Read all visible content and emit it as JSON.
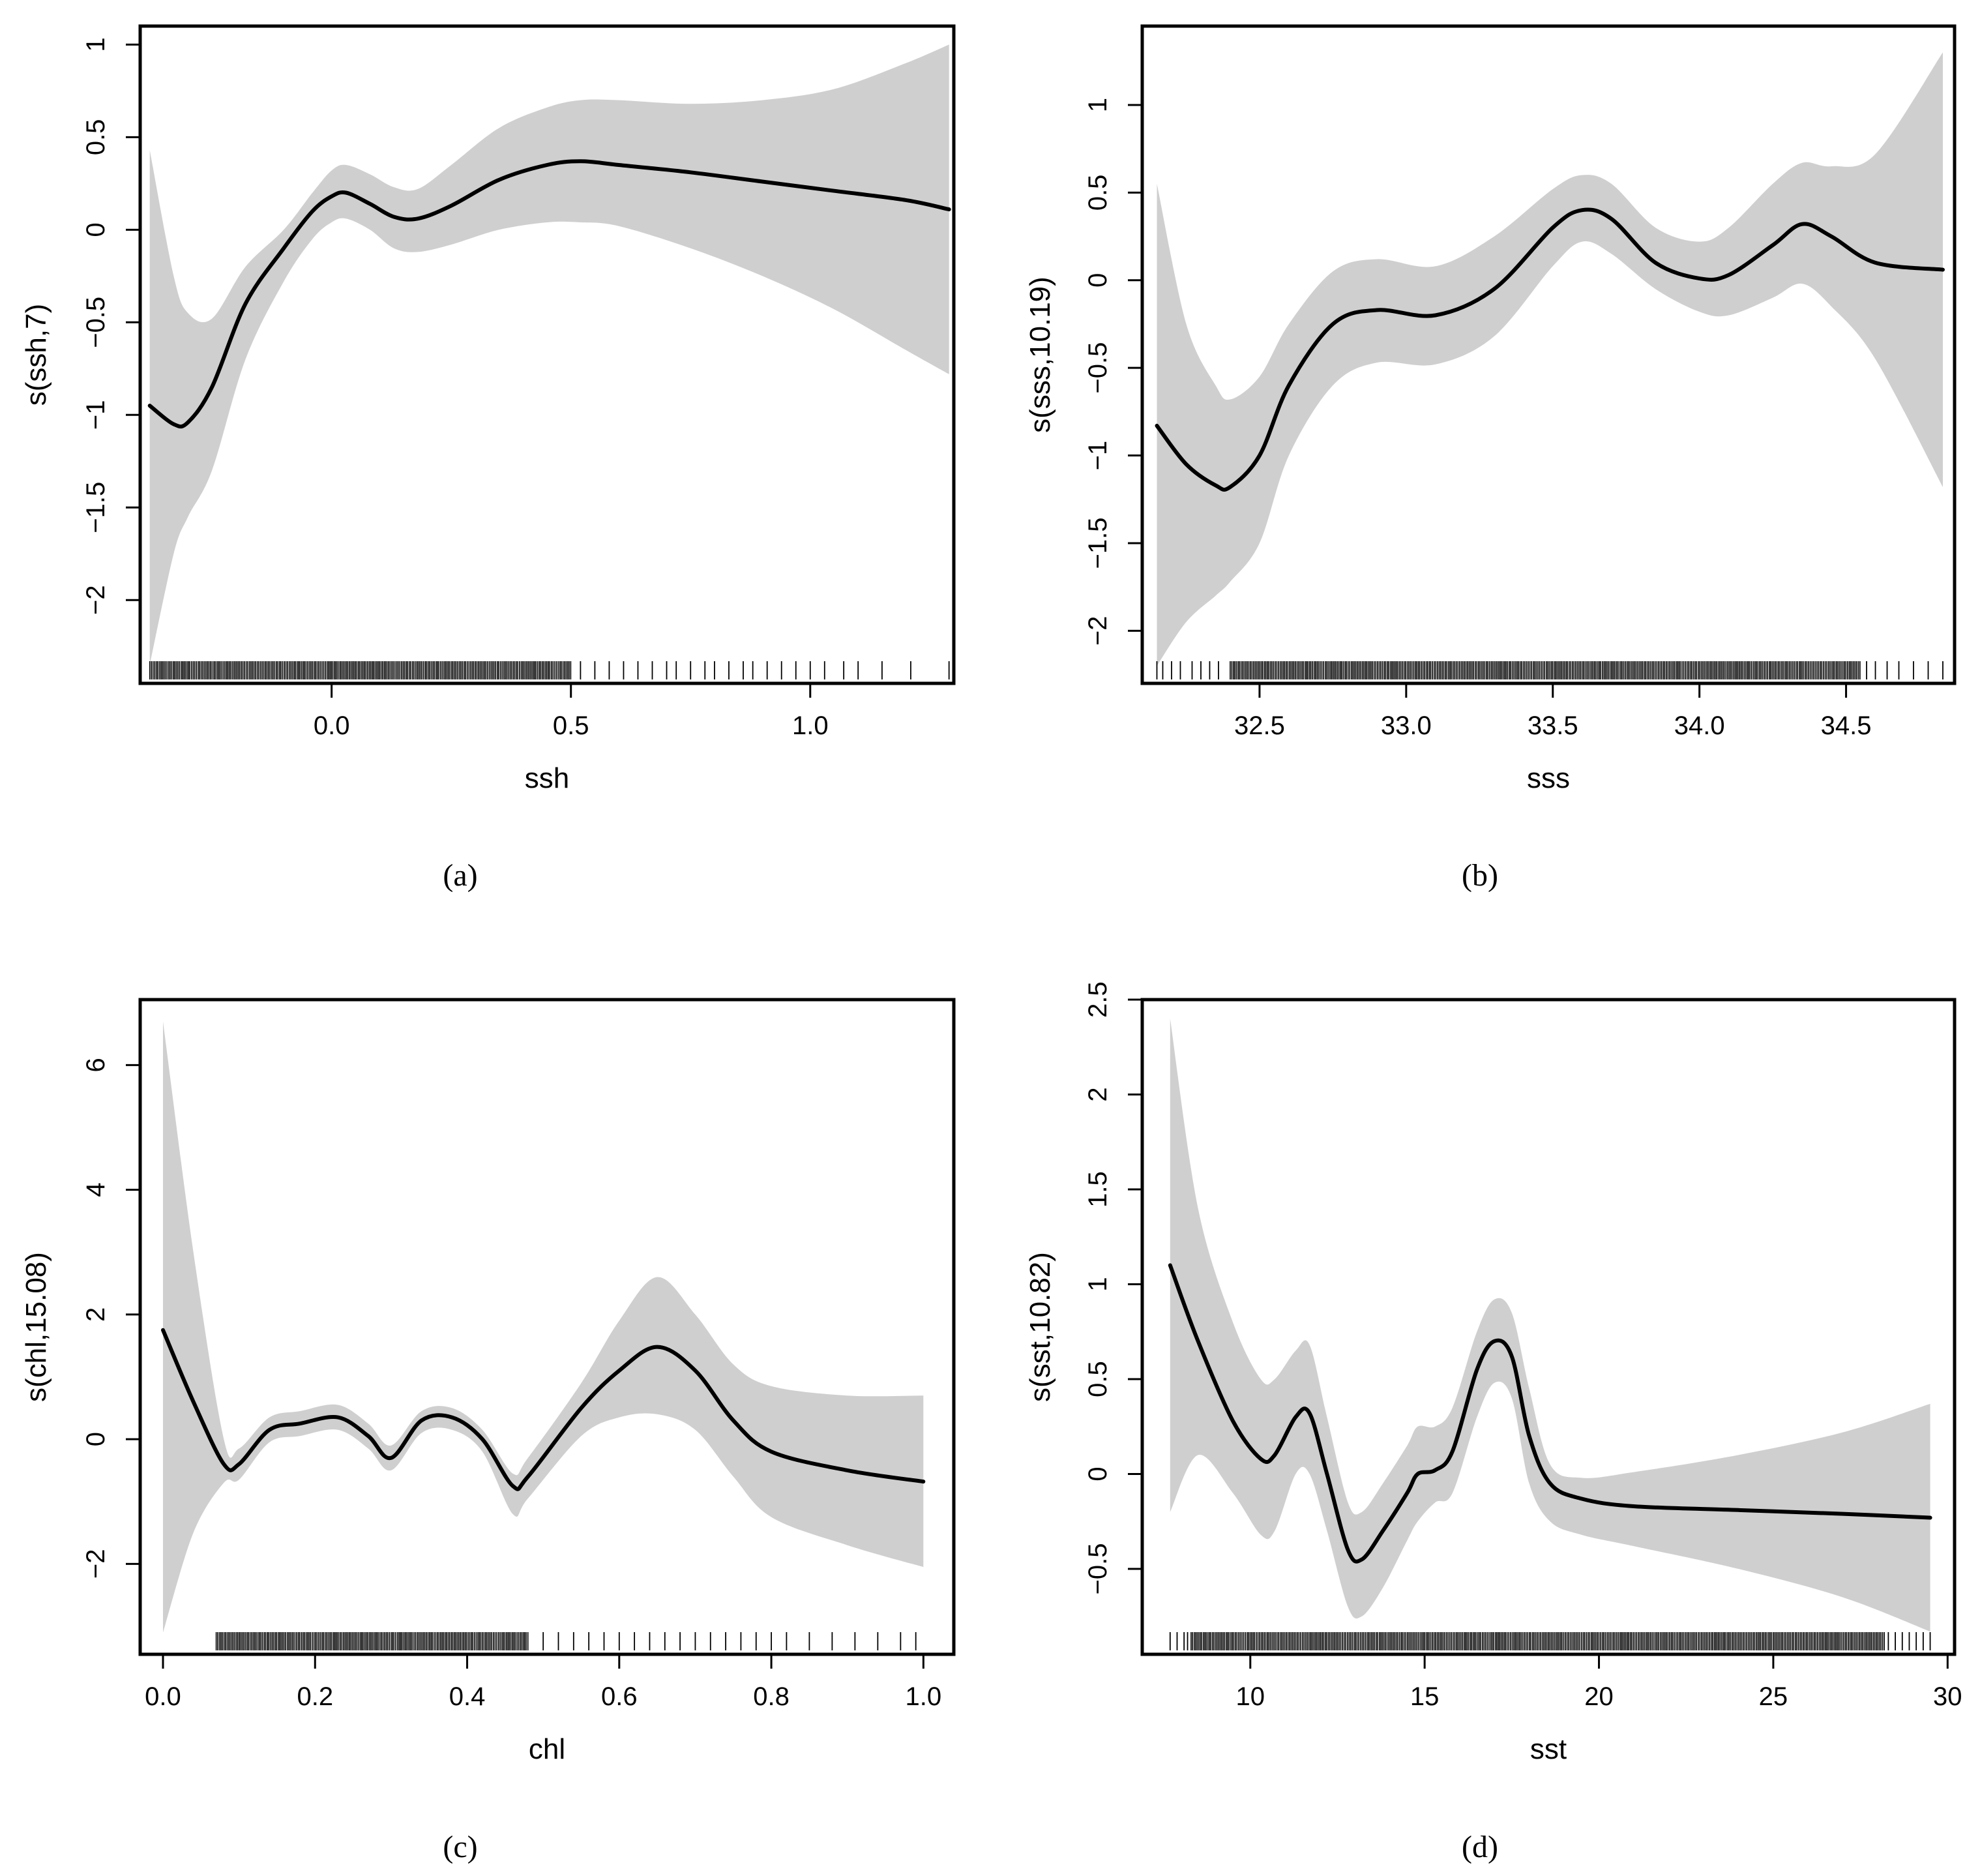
{
  "colors": {
    "band": "#cfcfcf",
    "line": "#000000",
    "frame": "#000000"
  },
  "chart_data": [
    {
      "type": "line",
      "caption": "(a)",
      "caption_letter": "a",
      "xlabel": "ssh",
      "ylabel": "s(ssh,7)",
      "xlim": [
        -0.4,
        1.3
      ],
      "ylim": [
        -2.45,
        1.1
      ],
      "xticks": [
        0.0,
        0.5,
        1.0
      ],
      "xtick_labels": [
        "0.0",
        "0.5",
        "1.0"
      ],
      "yticks": [
        -2,
        -1.5,
        -1,
        -0.5,
        0,
        0.5,
        1
      ],
      "ytick_labels": [
        "−2",
        "−1.5",
        "−1",
        "−0.5",
        "0",
        "0.5",
        "1"
      ],
      "x": [
        -0.38,
        -0.33,
        -0.3,
        -0.25,
        -0.18,
        -0.1,
        -0.04,
        0.0,
        0.03,
        0.08,
        0.13,
        0.18,
        0.25,
        0.35,
        0.45,
        0.52,
        0.6,
        0.75,
        0.9,
        1.05,
        1.2,
        1.29
      ],
      "fit": [
        -0.95,
        -1.05,
        -1.04,
        -0.85,
        -0.4,
        -0.1,
        0.1,
        0.18,
        0.2,
        0.14,
        0.07,
        0.06,
        0.13,
        0.27,
        0.35,
        0.37,
        0.35,
        0.31,
        0.26,
        0.21,
        0.16,
        0.11
      ],
      "upper": [
        0.43,
        -0.25,
        -0.45,
        -0.48,
        -0.2,
        0.0,
        0.2,
        0.32,
        0.35,
        0.3,
        0.23,
        0.22,
        0.35,
        0.55,
        0.66,
        0.7,
        0.7,
        0.68,
        0.7,
        0.76,
        0.9,
        1.0
      ],
      "lower": [
        -2.35,
        -1.75,
        -1.55,
        -1.3,
        -0.7,
        -0.28,
        -0.05,
        0.04,
        0.06,
        0.0,
        -0.1,
        -0.12,
        -0.08,
        0.0,
        0.04,
        0.04,
        0.02,
        -0.1,
        -0.25,
        -0.43,
        -0.65,
        -0.78
      ],
      "rug_dense": [
        -0.38,
        0.5
      ],
      "rug_sparse": [
        0.52,
        0.55,
        0.58,
        0.61,
        0.64,
        0.67,
        0.7,
        0.72,
        0.75,
        0.78,
        0.8,
        0.83,
        0.86,
        0.88,
        0.91,
        0.94,
        0.97,
        1.0,
        1.03,
        1.07,
        1.1,
        1.15,
        1.21,
        1.29
      ]
    },
    {
      "type": "line",
      "caption": "(b)",
      "caption_letter": "b",
      "xlabel": "sss",
      "ylabel": "s(sss,10.19)",
      "xlim": [
        32.1,
        34.87
      ],
      "ylim": [
        -2.3,
        1.45
      ],
      "xticks": [
        32.5,
        33.0,
        33.5,
        34.0,
        34.5
      ],
      "xtick_labels": [
        "32.5",
        "33.0",
        "33.5",
        "34.0",
        "34.5"
      ],
      "yticks": [
        -2,
        -1.5,
        -1,
        -0.5,
        0,
        0.5,
        1
      ],
      "ytick_labels": [
        "−2",
        "−1.5",
        "−1",
        "−0.5",
        "0",
        "0.5",
        "1"
      ],
      "x": [
        32.15,
        32.25,
        32.35,
        32.4,
        32.5,
        32.6,
        32.75,
        32.9,
        33.1,
        33.3,
        33.5,
        33.6,
        33.7,
        33.85,
        34.0,
        34.1,
        34.25,
        34.35,
        34.45,
        34.6,
        34.83
      ],
      "fit": [
        -0.83,
        -1.05,
        -1.17,
        -1.18,
        -1.0,
        -0.6,
        -0.25,
        -0.17,
        -0.2,
        -0.05,
        0.3,
        0.4,
        0.35,
        0.1,
        0.01,
        0.03,
        0.2,
        0.32,
        0.25,
        0.1,
        0.06
      ],
      "upper": [
        0.55,
        -0.25,
        -0.6,
        -0.68,
        -0.55,
        -0.25,
        0.05,
        0.12,
        0.08,
        0.25,
        0.52,
        0.6,
        0.55,
        0.3,
        0.22,
        0.3,
        0.55,
        0.67,
        0.65,
        0.72,
        1.3
      ],
      "lower": [
        -2.2,
        -1.95,
        -1.8,
        -1.72,
        -1.5,
        -1.0,
        -0.6,
        -0.47,
        -0.48,
        -0.32,
        0.08,
        0.22,
        0.15,
        -0.05,
        -0.18,
        -0.2,
        -0.1,
        -0.02,
        -0.15,
        -0.45,
        -1.18
      ],
      "rug_dense": [
        32.4,
        34.55
      ],
      "rug_sparse": [
        32.15,
        32.17,
        32.2,
        32.23,
        32.27,
        32.3,
        32.33,
        32.36,
        34.57,
        34.6,
        34.64,
        34.68,
        34.73,
        34.78,
        34.83
      ]
    },
    {
      "type": "line",
      "caption": "(c)",
      "caption_letter": "c",
      "xlabel": "chl",
      "ylabel": "s(chl,15.08)",
      "xlim": [
        -0.03,
        1.04
      ],
      "ylim": [
        -3.45,
        7.05
      ],
      "xticks": [
        0.0,
        0.2,
        0.4,
        0.6,
        0.8,
        1.0
      ],
      "xtick_labels": [
        "0.0",
        "0.2",
        "0.4",
        "0.6",
        "0.8",
        "1.0"
      ],
      "yticks": [
        -2,
        0,
        2,
        4,
        6
      ],
      "ytick_labels": [
        "−2",
        "0",
        "2",
        "4",
        "6"
      ],
      "x": [
        0.0,
        0.04,
        0.08,
        0.1,
        0.14,
        0.18,
        0.23,
        0.27,
        0.3,
        0.34,
        0.38,
        0.42,
        0.46,
        0.48,
        0.55,
        0.6,
        0.65,
        0.7,
        0.75,
        0.8,
        0.9,
        1.0
      ],
      "fit": [
        1.75,
        0.6,
        -0.4,
        -0.4,
        0.15,
        0.25,
        0.35,
        0.05,
        -0.3,
        0.3,
        0.35,
        0.0,
        -0.75,
        -0.6,
        0.5,
        1.1,
        1.48,
        1.1,
        0.3,
        -0.2,
        -0.5,
        -0.68
      ],
      "upper": [
        6.7,
        3.0,
        0.0,
        -0.15,
        0.35,
        0.45,
        0.55,
        0.25,
        -0.1,
        0.45,
        0.5,
        0.15,
        -0.55,
        -0.3,
        0.9,
        1.9,
        2.6,
        2.0,
        1.2,
        0.85,
        0.7,
        0.7
      ],
      "lower": [
        -3.1,
        -1.5,
        -0.7,
        -0.65,
        -0.05,
        0.05,
        0.15,
        -0.15,
        -0.5,
        0.1,
        0.15,
        -0.2,
        -1.2,
        -0.95,
        0.05,
        0.35,
        0.4,
        0.15,
        -0.6,
        -1.25,
        -1.7,
        -2.05
      ],
      "rug_dense": [
        0.07,
        0.48
      ],
      "rug_sparse": [
        0.5,
        0.52,
        0.54,
        0.56,
        0.58,
        0.6,
        0.62,
        0.64,
        0.66,
        0.68,
        0.7,
        0.72,
        0.74,
        0.76,
        0.78,
        0.8,
        0.82,
        0.85,
        0.88,
        0.91,
        0.94,
        0.97,
        0.99
      ]
    },
    {
      "type": "line",
      "caption": "(d)",
      "caption_letter": "d",
      "xlabel": "sst",
      "ylabel": "s(sst,10.82)",
      "xlim": [
        6.9,
        30.2
      ],
      "ylim": [
        -0.95,
        2.5
      ],
      "xticks": [
        10,
        15,
        20,
        25,
        30
      ],
      "xtick_labels": [
        "10",
        "15",
        "20",
        "25",
        "30"
      ],
      "yticks": [
        -0.5,
        0,
        0.5,
        1,
        1.5,
        2,
        2.5
      ],
      "ytick_labels": [
        "−0.5",
        "0",
        "0.5",
        "1",
        "1.5",
        "2",
        "2.5"
      ],
      "x": [
        7.7,
        8.5,
        9.5,
        10.3,
        10.7,
        11.3,
        11.7,
        12.2,
        12.8,
        13.2,
        13.8,
        14.5,
        14.8,
        15.3,
        15.8,
        16.5,
        17.0,
        17.5,
        18.0,
        18.6,
        19.5,
        21.0,
        24.0,
        27.0,
        29.5
      ],
      "fit": [
        1.1,
        0.7,
        0.28,
        0.08,
        0.1,
        0.3,
        0.32,
        0.0,
        -0.4,
        -0.45,
        -0.3,
        -0.1,
        0.0,
        0.02,
        0.12,
        0.55,
        0.7,
        0.62,
        0.2,
        -0.05,
        -0.13,
        -0.17,
        -0.19,
        -0.21,
        -0.23
      ],
      "upper": [
        2.4,
        1.4,
        0.8,
        0.5,
        0.5,
        0.65,
        0.68,
        0.3,
        -0.15,
        -0.2,
        -0.05,
        0.15,
        0.25,
        0.25,
        0.35,
        0.75,
        0.92,
        0.85,
        0.45,
        0.05,
        -0.02,
        0.01,
        0.1,
        0.22,
        0.37
      ],
      "lower": [
        -0.2,
        0.1,
        -0.1,
        -0.32,
        -0.3,
        0.0,
        0.0,
        -0.3,
        -0.7,
        -0.75,
        -0.6,
        -0.35,
        -0.25,
        -0.15,
        -0.1,
        0.3,
        0.48,
        0.4,
        -0.05,
        -0.25,
        -0.32,
        -0.38,
        -0.5,
        -0.65,
        -0.83
      ],
      "rug_dense": [
        8.3,
        28.2
      ],
      "rug_sparse": [
        7.7,
        7.9,
        8.1,
        8.2,
        28.3,
        28.5,
        28.7,
        28.9,
        29.1,
        29.3,
        29.5
      ]
    }
  ]
}
